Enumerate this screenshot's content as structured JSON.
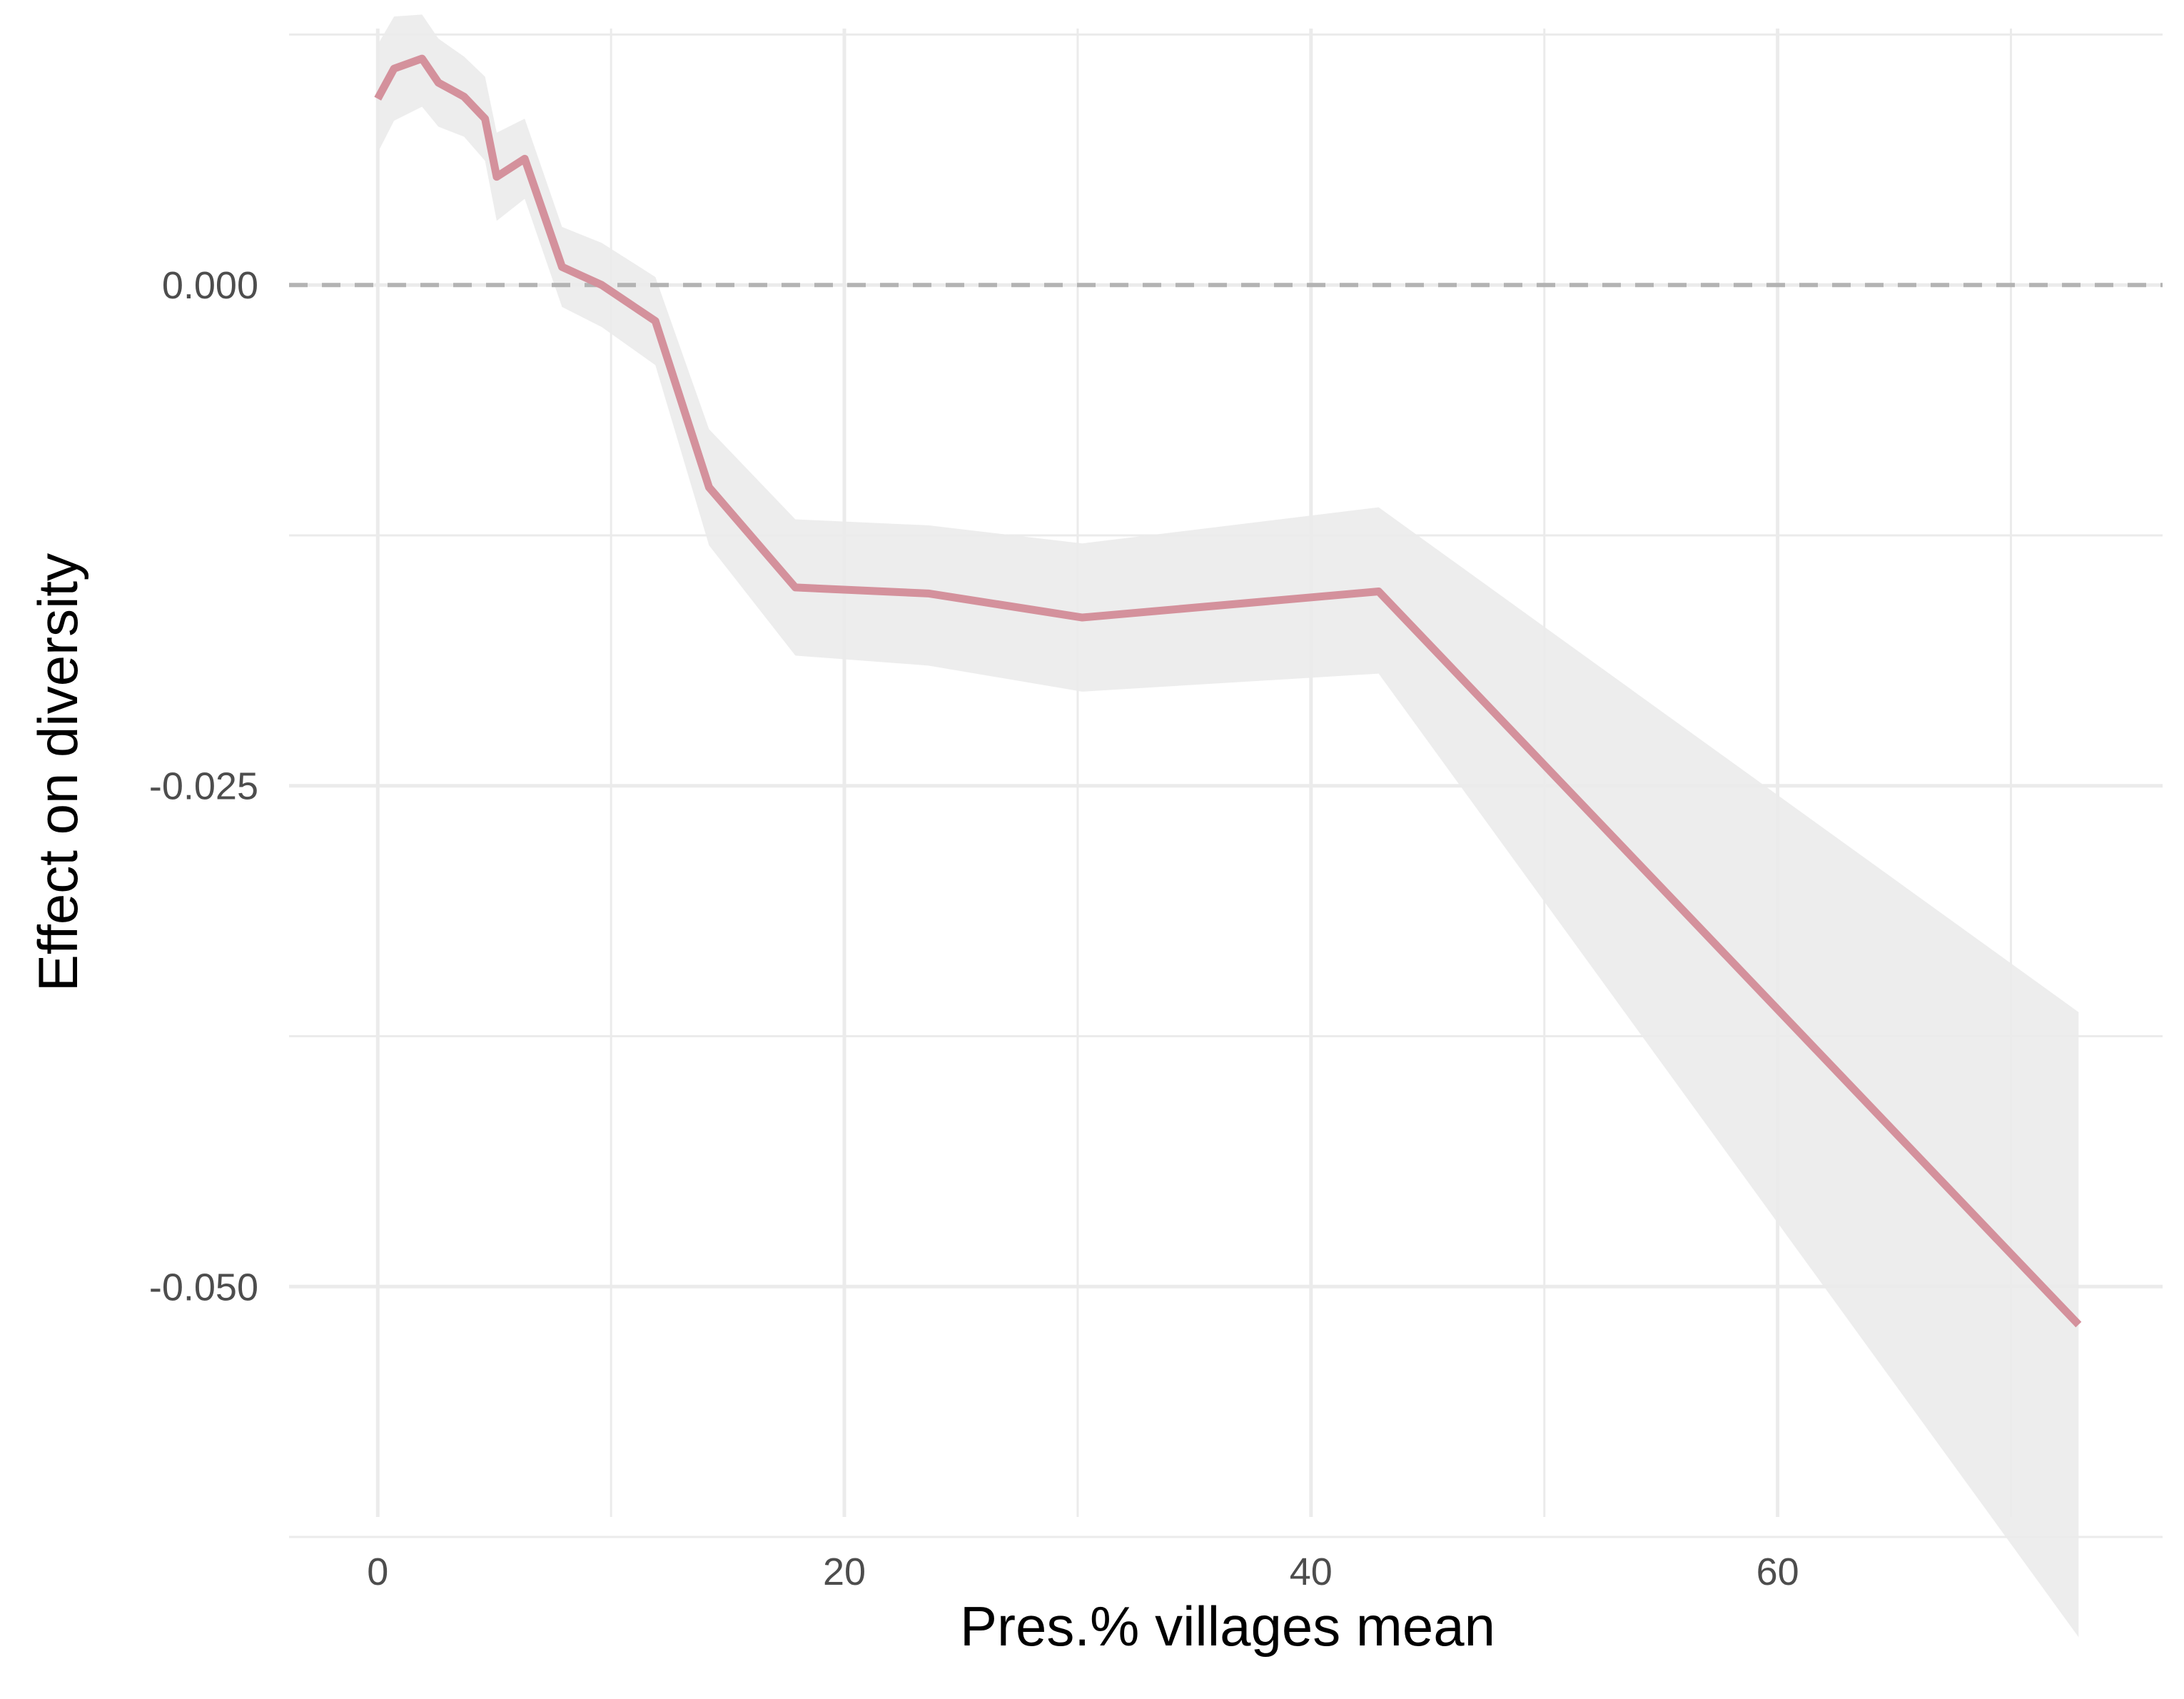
{
  "chart_data": {
    "type": "line",
    "title": "",
    "xlabel": "Pres.% villages mean",
    "ylabel": "Effect on diversity",
    "xlim": [
      -3.8,
      76.5
    ],
    "ylim": [
      -0.0615,
      0.0128
    ],
    "x_ticks": [
      0,
      20,
      40,
      60
    ],
    "x_tick_labels": [
      "0",
      "20",
      "40",
      "60"
    ],
    "x_minor_ticks": [
      10,
      30,
      50,
      70
    ],
    "y_ticks": [
      0.0,
      -0.025,
      -0.05
    ],
    "y_tick_labels": [
      "0.000",
      "-0.025",
      "-0.050"
    ],
    "y_minor_ticks": [
      0.0125,
      -0.0125,
      -0.0375,
      -0.0625
    ],
    "reference_line": {
      "y": 0.0,
      "style": "dashed",
      "color": "#b3b3b3"
    },
    "grid": true,
    "legend": "none",
    "colors": {
      "line": "#d4919c",
      "ribbon": "#ebebeb",
      "grid": "#ebebeb",
      "zero_line": "#b3b3b3"
    },
    "series": [
      {
        "x": [
          0.0,
          0.7,
          1.9,
          2.6,
          3.7,
          4.6,
          5.1,
          6.3,
          7.9,
          9.6,
          11.9,
          14.2,
          17.9,
          23.6,
          30.2,
          42.9,
          72.9
        ],
        "y": [
          0.0093,
          0.0108,
          0.0113,
          0.0101,
          0.0094,
          0.0083,
          0.0054,
          0.0063,
          0.0009,
          0.0,
          -0.0018,
          -0.0101,
          -0.0151,
          -0.0154,
          -0.0166,
          -0.0153,
          -0.0519
        ],
        "lower": [
          0.0066,
          0.0082,
          0.0089,
          0.0079,
          0.0074,
          0.0062,
          0.0032,
          0.0043,
          -0.0011,
          -0.0021,
          -0.004,
          -0.013,
          -0.0185,
          -0.019,
          -0.0203,
          -0.0194,
          -0.0675
        ],
        "upper": [
          0.012,
          0.0134,
          0.0135,
          0.0123,
          0.0114,
          0.0104,
          0.0076,
          0.0083,
          0.0029,
          0.0021,
          0.0004,
          -0.0072,
          -0.0117,
          -0.012,
          -0.0129,
          -0.0111,
          -0.0363
        ]
      }
    ]
  }
}
